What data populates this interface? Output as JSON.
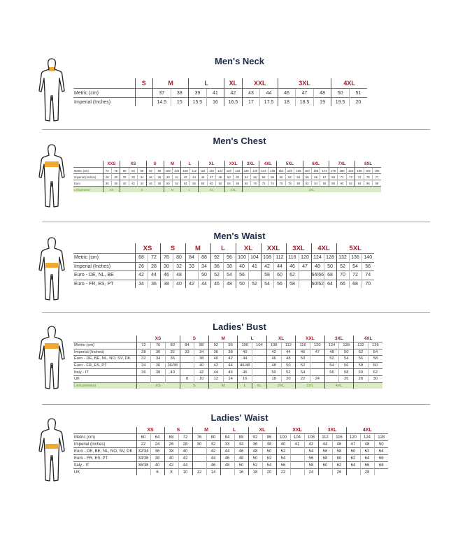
{
  "colors": {
    "title": "#1f2a4a",
    "size_label": "#a01c2a",
    "highlight": "#f0a830",
    "leisurewear_bg": "#d9eac4",
    "leisurewear_text": "#6a9a3a"
  },
  "charts": [
    {
      "title": "Men's Neck",
      "highlight": "neck",
      "sizes": [
        {
          "label": "S",
          "span": 1
        },
        {
          "label": "M",
          "span": 2
        },
        {
          "label": "L",
          "span": 2
        },
        {
          "label": "XL",
          "span": 1
        },
        {
          "label": "XXL",
          "span": 2
        },
        {
          "label": "3XL",
          "span": 3
        },
        {
          "label": "4XL",
          "span": 2
        }
      ],
      "rows": [
        {
          "label": "Metric  (cm)",
          "cells": [
            "",
            "37",
            "38",
            "39",
            "41",
            "42",
            "43",
            "44",
            "46",
            "47",
            "48",
            "50",
            "51"
          ]
        },
        {
          "label": "Imperial (Inches)",
          "cells": [
            "",
            "14.5",
            "15",
            "15.5",
            "16",
            "16.5",
            "17",
            "17.5",
            "18",
            "18.5",
            "19",
            "19.5",
            "20"
          ]
        }
      ]
    },
    {
      "title": "Men's Chest",
      "highlight": "chest",
      "sizes": [
        {
          "label": "XXS",
          "span": 2
        },
        {
          "label": "XS",
          "span": 3
        },
        {
          "label": "S",
          "span": 2
        },
        {
          "label": "M",
          "span": 2
        },
        {
          "label": "L",
          "span": 2
        },
        {
          "label": "XL",
          "span": 3
        },
        {
          "label": "XXL",
          "span": 2
        },
        {
          "label": "3XL",
          "span": 2
        },
        {
          "label": "4XL",
          "span": 2
        },
        {
          "label": "5XL",
          "span": 3
        },
        {
          "label": "6XL",
          "span": 3
        },
        {
          "label": "7XL",
          "span": 3
        },
        {
          "label": "8XL",
          "span": 3
        }
      ],
      "rows": [
        {
          "label": "Metric  (cm)",
          "cells": [
            "72",
            "76",
            "80",
            "84",
            "88",
            "92",
            "96",
            "100",
            "104",
            "108",
            "112",
            "116",
            "120",
            "124",
            "128",
            "132",
            "136",
            "140",
            "144",
            "148",
            "152",
            "156",
            "160",
            "164",
            "168",
            "172",
            "176",
            "180",
            "184",
            "188",
            "192",
            "196"
          ]
        },
        {
          "label": "Imperial (Inches)",
          "cells": [
            "28",
            "30",
            "32",
            "33",
            "34",
            "36",
            "38",
            "40",
            "41",
            "42",
            "44",
            "46",
            "47",
            "48",
            "50",
            "52",
            "54",
            "55",
            "56",
            "58",
            "60",
            "62",
            "64",
            "65",
            "66",
            "67",
            "69",
            "71",
            "73",
            "74",
            "76",
            "77"
          ]
        },
        {
          "label": "Euro",
          "cells": [
            "36",
            "38",
            "40",
            "42",
            "44",
            "46",
            "48",
            "50",
            "52",
            "54",
            "56",
            "58",
            "60",
            "62",
            "64",
            "66",
            "68",
            "70",
            "72",
            "74",
            "76",
            "78",
            "80",
            "82",
            "84",
            "86",
            "88",
            "90",
            "92",
            "94",
            "96",
            "98"
          ]
        }
      ],
      "leisurewear": {
        "label": "Leisurewear",
        "sizes": [
          {
            "label": "XS",
            "span": 2
          },
          {
            "label": "S",
            "span": 5
          },
          {
            "label": "M",
            "span": 2
          },
          {
            "label": "L",
            "span": 2
          },
          {
            "label": "XL",
            "span": 3
          },
          {
            "label": "XXL",
            "span": 2
          },
          {
            "label": "3XL",
            "span": 16
          }
        ]
      }
    },
    {
      "title": "Men's Waist",
      "highlight": "waist",
      "sizes": [
        {
          "label": "XS",
          "span": 2
        },
        {
          "label": "S",
          "span": 2
        },
        {
          "label": "M",
          "span": 2
        },
        {
          "label": "L",
          "span": 2
        },
        {
          "label": "XL",
          "span": 2
        },
        {
          "label": "XXL",
          "span": 2
        },
        {
          "label": "3XL",
          "span": 2
        },
        {
          "label": "4XL",
          "span": 2
        },
        {
          "label": "5XL",
          "span": 3
        }
      ],
      "rows": [
        {
          "label": "Metric  (cm)",
          "cells": [
            "68",
            "72",
            "76",
            "80",
            "84",
            "88",
            "92",
            "96",
            "100",
            "104",
            "108",
            "112",
            "116",
            "120",
            "124",
            "128",
            "132",
            "136",
            "140"
          ]
        },
        {
          "label": "Imperial (Inches)",
          "cells": [
            "26",
            "28",
            "30",
            "32",
            "33",
            "34",
            "36",
            "38",
            "40",
            "41",
            "42",
            "44",
            "46",
            "47",
            "48",
            "50",
            "52",
            "54",
            "56"
          ]
        },
        {
          "label": "Euro - DE, NL, BE",
          "cells": [
            "42",
            "44",
            "46",
            "48",
            "",
            "50",
            "52",
            "54",
            "56",
            "",
            "58",
            "60",
            "62",
            "",
            "64/66",
            "68",
            "70",
            "72",
            "74"
          ]
        },
        {
          "label": "Euro - FR, ES, PT",
          "cells": [
            "34",
            "36",
            "38",
            "40",
            "42",
            "44",
            "46",
            "48",
            "50",
            "52",
            "54",
            "56",
            "58",
            "",
            "60/62",
            "64",
            "66",
            "68",
            "70"
          ]
        }
      ]
    },
    {
      "title": "Ladies' Bust",
      "highlight": "chest",
      "sizes": [
        {
          "label": "XS",
          "span": 3
        },
        {
          "label": "S",
          "span": 2
        },
        {
          "label": "M",
          "span": 2
        },
        {
          "label": "L",
          "span": 2
        },
        {
          "label": "XL",
          "span": 2
        },
        {
          "label": "XXL",
          "span": 2
        },
        {
          "label": "3XL",
          "span": 2
        },
        {
          "label": "4XL",
          "span": 2
        }
      ],
      "rows": [
        {
          "label": "Metric  (cm)",
          "cells": [
            "72",
            "76",
            "80",
            "84",
            "88",
            "92",
            "96",
            "100",
            "104",
            "108",
            "112",
            "116",
            "120",
            "124",
            "128",
            "132",
            "136"
          ]
        },
        {
          "label": "Imperial (Inches)",
          "cells": [
            "28",
            "30",
            "32",
            "33",
            "34",
            "36",
            "38",
            "40",
            "",
            "42",
            "44",
            "46",
            "47",
            "48",
            "50",
            "52",
            "54"
          ]
        },
        {
          "label": "Euro - DE, BE, NL, NO, SV, DK",
          "cells": [
            "32",
            "34",
            "36",
            "",
            "38",
            "40",
            "42",
            "44",
            "",
            "46",
            "48",
            "50",
            "",
            "52",
            "54",
            "56",
            "58"
          ]
        },
        {
          "label": "Euro - FR, ES, PT",
          "cells": [
            "34",
            "36",
            "36/38",
            "",
            "40",
            "42",
            "44",
            "46/48",
            "",
            "48",
            "50",
            "52",
            "",
            "54",
            "56",
            "58",
            "60"
          ]
        },
        {
          "label": "Italy - IT",
          "cells": [
            "36",
            "38",
            "40",
            "",
            "42",
            "44",
            "46",
            "46",
            "",
            "50",
            "52",
            "54",
            "",
            "56",
            "58",
            "60",
            "62"
          ]
        },
        {
          "label": "UK",
          "cells": [
            "",
            "",
            "",
            "8",
            "10",
            "12",
            "14",
            "16",
            "",
            "18",
            "20",
            "22",
            "24",
            "",
            "26",
            "28",
            "30"
          ]
        }
      ],
      "leisurewear": {
        "label": "Leisurewear",
        "sizes": [
          {
            "label": "XS",
            "span": 3
          },
          {
            "label": "S",
            "span": 2
          },
          {
            "label": "M",
            "span": 2
          },
          {
            "label": "L",
            "span": 1
          },
          {
            "label": "XL",
            "span": 1
          },
          {
            "label": "2XL",
            "span": 2
          },
          {
            "label": "3XL",
            "span": 2
          },
          {
            "label": "4XL",
            "span": 2
          },
          {
            "label": "",
            "span": 2
          }
        ]
      }
    },
    {
      "title": "Ladies' Waist",
      "highlight": "waist",
      "sizes": [
        {
          "label": "XS",
          "span": 2
        },
        {
          "label": "S",
          "span": 2
        },
        {
          "label": "M",
          "span": 2
        },
        {
          "label": "L",
          "span": 2
        },
        {
          "label": "XL",
          "span": 2
        },
        {
          "label": "XXL",
          "span": 3
        },
        {
          "label": "3XL",
          "span": 2
        },
        {
          "label": "4XL",
          "span": 3
        }
      ],
      "rows": [
        {
          "label": "Metric  (cm)",
          "cells": [
            "60",
            "64",
            "68",
            "72",
            "76",
            "80",
            "84",
            "88",
            "92",
            "96",
            "100",
            "104",
            "108",
            "112",
            "116",
            "120",
            "124",
            "128"
          ]
        },
        {
          "label": "Imperial (inches)",
          "cells": [
            "22",
            "24",
            "26",
            "28",
            "30",
            "32",
            "33",
            "34",
            "36",
            "38",
            "40",
            "41",
            "42",
            "44",
            "46",
            "47",
            "48",
            "50"
          ]
        },
        {
          "label": "Euro - DE, BE, NL, NO, SV, DK",
          "cells": [
            "32/34",
            "36",
            "38",
            "40",
            "",
            "42",
            "44",
            "46",
            "48",
            "50",
            "52",
            "",
            "54",
            "56",
            "58",
            "60",
            "62",
            "64"
          ]
        },
        {
          "label": "Euro - FR, ES, PT",
          "cells": [
            "34/36",
            "38",
            "40",
            "42",
            "",
            "44",
            "46",
            "48",
            "50",
            "52",
            "54",
            "",
            "56",
            "58",
            "60",
            "62",
            "64",
            "66"
          ]
        },
        {
          "label": "Italy - IT",
          "cells": [
            "36/38",
            "40",
            "42",
            "44",
            "",
            "46",
            "48",
            "50",
            "52",
            "54",
            "56",
            "",
            "58",
            "60",
            "62",
            "64",
            "66",
            "68"
          ]
        },
        {
          "label": "UK",
          "cells": [
            "",
            "6",
            "8",
            "10",
            "12",
            "14",
            "",
            "16",
            "18",
            "20",
            "22",
            "",
            "24",
            "",
            "26",
            "",
            "28",
            ""
          ]
        }
      ]
    }
  ]
}
